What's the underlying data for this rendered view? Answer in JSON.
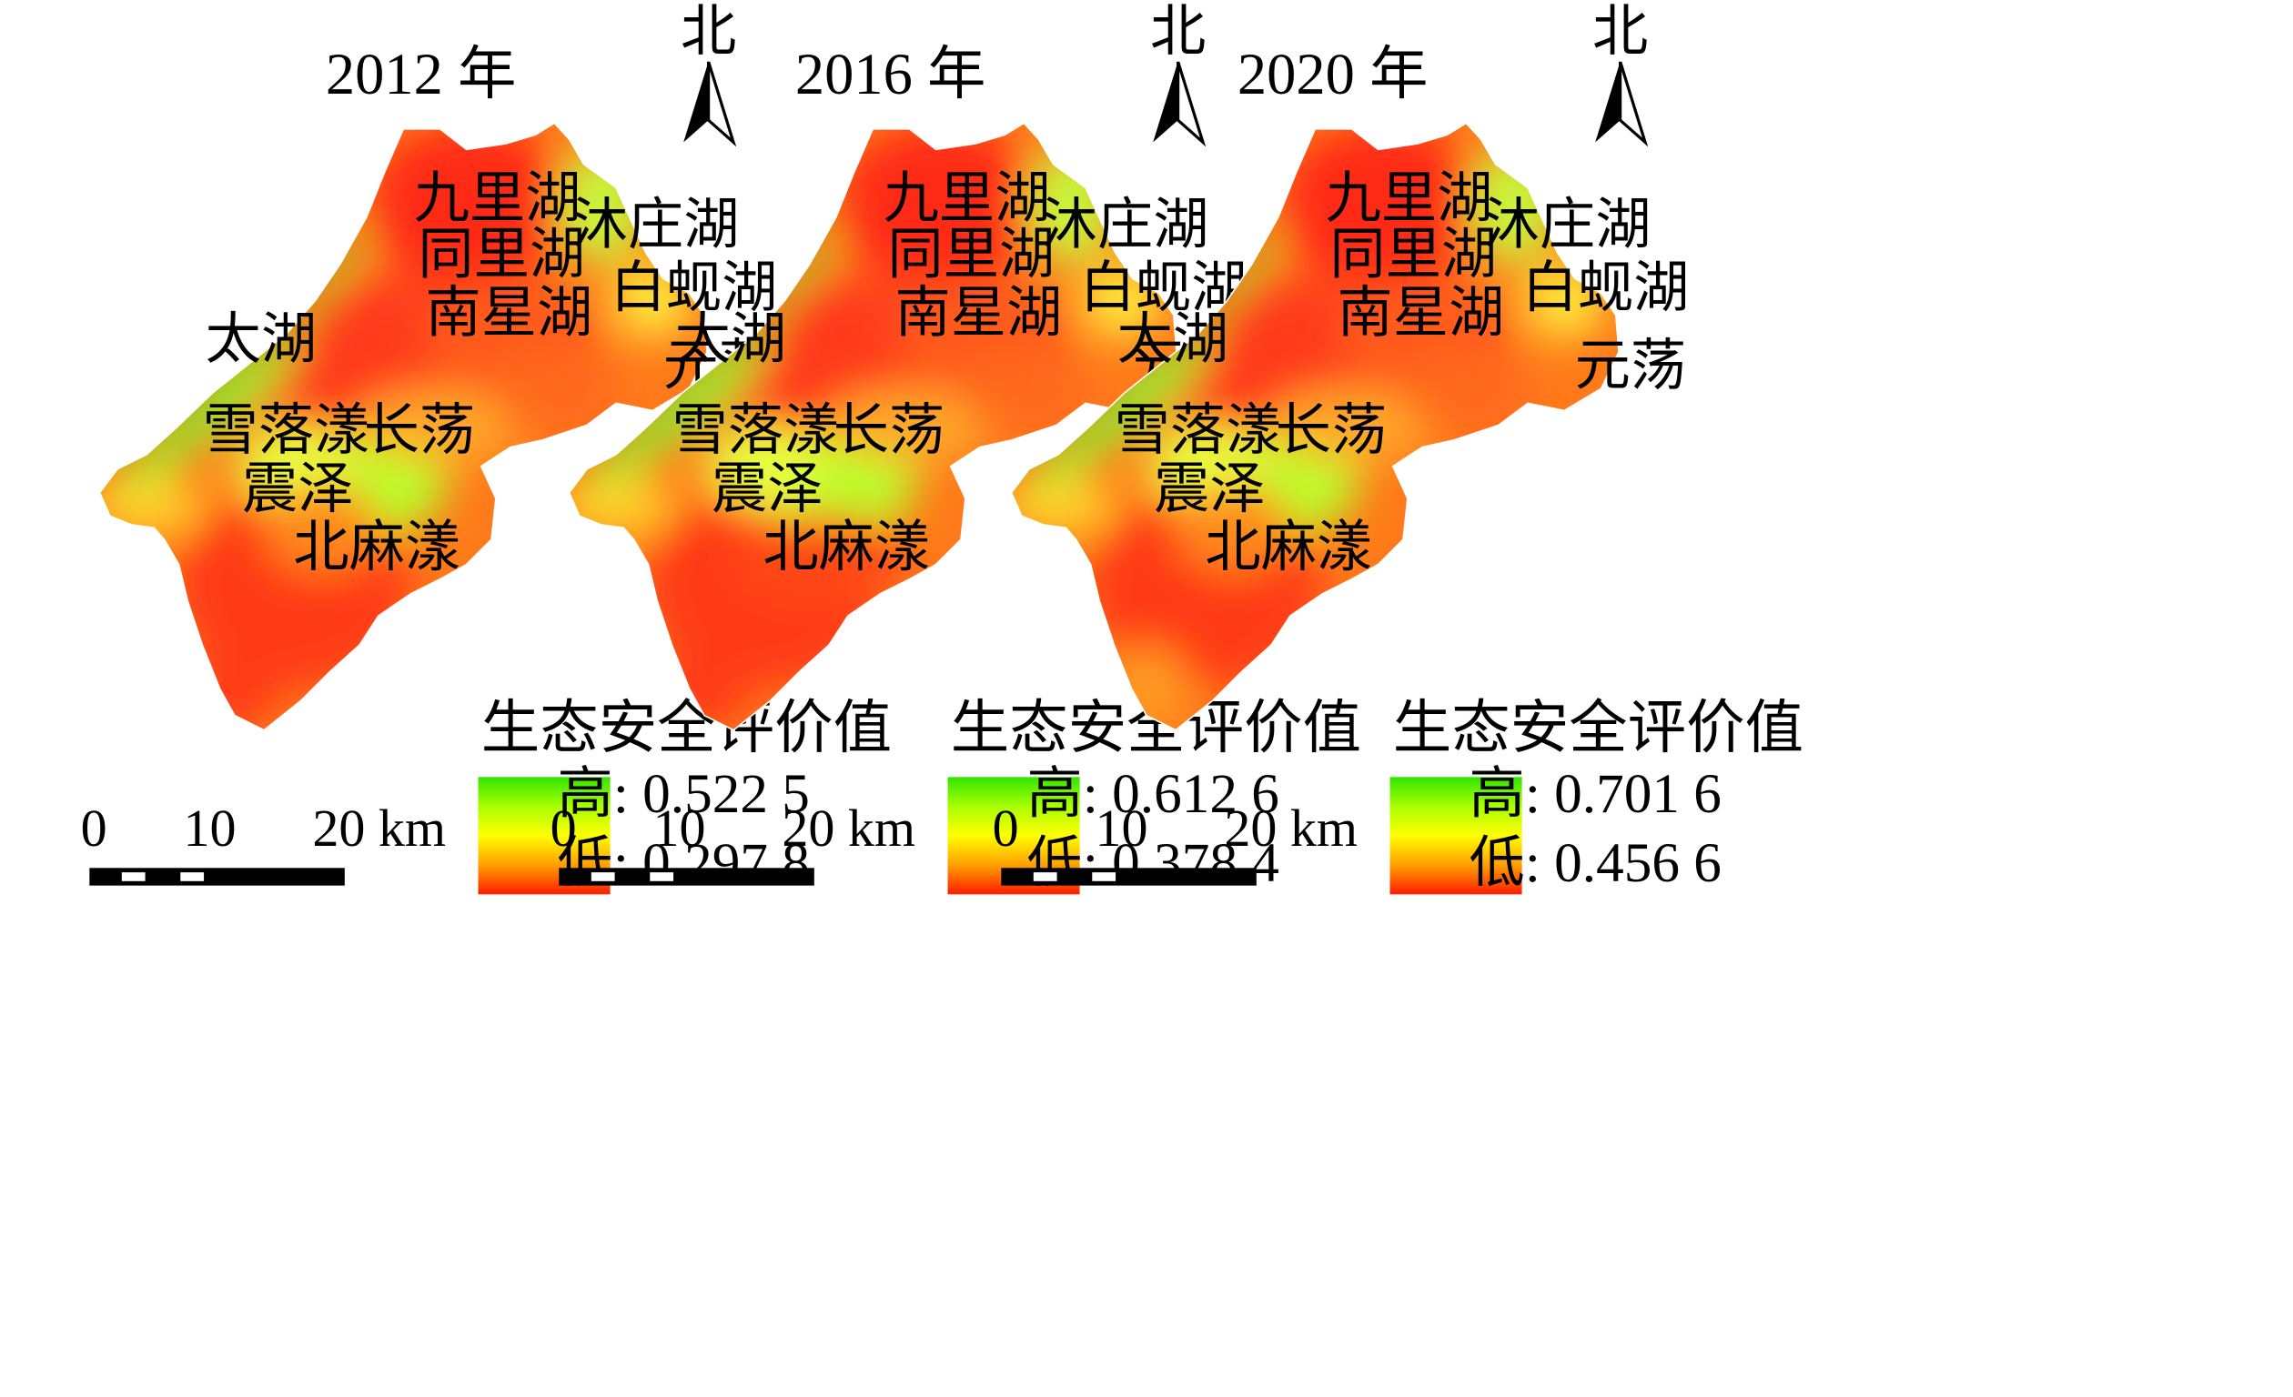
{
  "figure": {
    "unit_text": "km",
    "legend_title": "生态安全评价值",
    "north_label": "北",
    "panels": [
      {
        "year": "2012 年",
        "high": "高: 0.522 5",
        "low": "低: 0.297 8",
        "high_value": 0.5225,
        "low_value": 0.2978
      },
      {
        "year": "2016 年",
        "high": "高: 0.612 6",
        "low": "低: 0.378 4",
        "high_value": 0.6126,
        "low_value": 0.3784
      },
      {
        "year": "2020 年",
        "high": "高: 0.701 6",
        "low": "低: 0.456 6",
        "high_value": 0.7016,
        "low_value": 0.4566
      }
    ],
    "scale_ticks": [
      "0",
      "10",
      "20 km"
    ],
    "lakes": [
      "九里湖",
      "同里湖",
      "南星湖",
      "沐庄湖",
      "白蚬湖",
      "元荡",
      "太湖",
      "雪落漾",
      "长荡",
      "震泽",
      "北麻漾"
    ],
    "colors": {
      "high": "#33e400",
      "mid": "#ffff00",
      "low": "#ff1e00"
    }
  }
}
